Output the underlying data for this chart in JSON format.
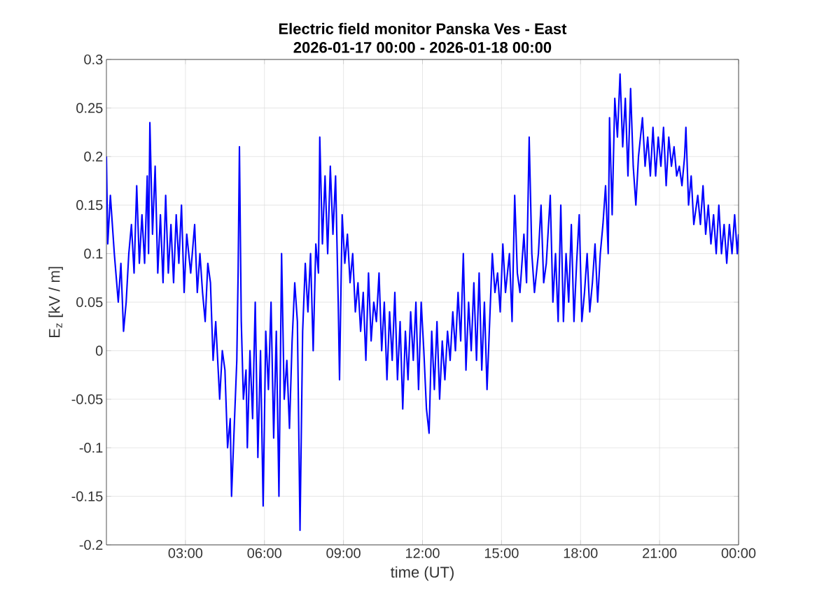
{
  "chart_data": {
    "type": "line",
    "title": "Electric field monitor Panska Ves - East",
    "subtitle": "2026-01-17 00:00 - 2026-01-18 00:00",
    "xlabel": "time (UT)",
    "ylabel": "E$_{z}$ [kV / m]",
    "xlim": [
      0,
      24
    ],
    "xticks": [
      {
        "value": 3,
        "label": "03:00"
      },
      {
        "value": 6,
        "label": "06:00"
      },
      {
        "value": 9,
        "label": "09:00"
      },
      {
        "value": 12,
        "label": "12:00"
      },
      {
        "value": 15,
        "label": "15:00"
      },
      {
        "value": 18,
        "label": "18:00"
      },
      {
        "value": 21,
        "label": "21:00"
      },
      {
        "value": 24,
        "label": "00:00"
      }
    ],
    "ylim": [
      -0.2,
      0.3
    ],
    "yticks": [
      -0.2,
      -0.15,
      -0.1,
      -0.05,
      0,
      0.05,
      0.1,
      0.15,
      0.2,
      0.25,
      0.3
    ],
    "grid": true,
    "series": [
      {
        "color": "#0000ff",
        "x": [
          0.0,
          0.05,
          0.15,
          0.3,
          0.45,
          0.55,
          0.65,
          0.75,
          0.85,
          0.95,
          1.05,
          1.15,
          1.25,
          1.35,
          1.45,
          1.55,
          1.6,
          1.65,
          1.75,
          1.85,
          1.95,
          2.05,
          2.15,
          2.25,
          2.35,
          2.45,
          2.55,
          2.65,
          2.75,
          2.85,
          2.95,
          3.05,
          3.2,
          3.35,
          3.45,
          3.55,
          3.65,
          3.75,
          3.85,
          3.95,
          4.05,
          4.15,
          4.3,
          4.4,
          4.5,
          4.6,
          4.7,
          4.75,
          4.85,
          4.95,
          5.0,
          5.05,
          5.12,
          5.2,
          5.3,
          5.35,
          5.45,
          5.55,
          5.65,
          5.75,
          5.85,
          5.95,
          6.05,
          6.15,
          6.25,
          6.35,
          6.45,
          6.55,
          6.65,
          6.75,
          6.85,
          6.95,
          7.05,
          7.15,
          7.25,
          7.35,
          7.45,
          7.55,
          7.65,
          7.75,
          7.85,
          7.95,
          8.05,
          8.1,
          8.2,
          8.3,
          8.4,
          8.5,
          8.6,
          8.7,
          8.8,
          8.85,
          8.95,
          9.05,
          9.15,
          9.25,
          9.35,
          9.45,
          9.55,
          9.65,
          9.75,
          9.85,
          9.95,
          10.05,
          10.15,
          10.25,
          10.35,
          10.45,
          10.55,
          10.65,
          10.75,
          10.85,
          10.95,
          11.05,
          11.15,
          11.25,
          11.35,
          11.45,
          11.55,
          11.65,
          11.75,
          11.85,
          11.95,
          12.05,
          12.15,
          12.25,
          12.35,
          12.45,
          12.55,
          12.65,
          12.75,
          12.85,
          12.95,
          13.05,
          13.15,
          13.25,
          13.35,
          13.45,
          13.55,
          13.65,
          13.75,
          13.85,
          13.95,
          14.05,
          14.15,
          14.25,
          14.35,
          14.45,
          14.55,
          14.65,
          14.75,
          14.85,
          14.95,
          15.05,
          15.15,
          15.3,
          15.4,
          15.5,
          15.6,
          15.7,
          15.85,
          15.95,
          16.05,
          16.15,
          16.25,
          16.4,
          16.5,
          16.6,
          16.7,
          16.85,
          16.95,
          17.05,
          17.15,
          17.25,
          17.35,
          17.45,
          17.55,
          17.65,
          17.75,
          17.85,
          17.95,
          18.05,
          18.15,
          18.25,
          18.35,
          18.45,
          18.55,
          18.65,
          18.75,
          18.85,
          18.95,
          19.05,
          19.1,
          19.2,
          19.3,
          19.4,
          19.5,
          19.6,
          19.7,
          19.8,
          19.9,
          20.0,
          20.1,
          20.2,
          20.35,
          20.45,
          20.55,
          20.65,
          20.75,
          20.85,
          20.95,
          21.05,
          21.15,
          21.25,
          21.35,
          21.45,
          21.55,
          21.65,
          21.75,
          21.85,
          21.95,
          22.0,
          22.1,
          22.2,
          22.3,
          22.45,
          22.55,
          22.65,
          22.75,
          22.85,
          22.95,
          23.05,
          23.15,
          23.25,
          23.35,
          23.45,
          23.55,
          23.65,
          23.75,
          23.85,
          23.95,
          24.0
        ],
        "values": [
          0.2,
          0.11,
          0.16,
          0.1,
          0.05,
          0.09,
          0.02,
          0.05,
          0.1,
          0.13,
          0.08,
          0.17,
          0.09,
          0.14,
          0.09,
          0.18,
          0.1,
          0.235,
          0.12,
          0.19,
          0.08,
          0.14,
          0.07,
          0.16,
          0.08,
          0.13,
          0.07,
          0.14,
          0.09,
          0.15,
          0.06,
          0.12,
          0.08,
          0.13,
          0.06,
          0.1,
          0.06,
          0.03,
          0.09,
          0.07,
          -0.01,
          0.03,
          -0.05,
          0.0,
          -0.02,
          -0.1,
          -0.07,
          -0.15,
          -0.08,
          -0.01,
          0.08,
          0.21,
          0.03,
          -0.05,
          -0.02,
          -0.1,
          0.0,
          -0.07,
          0.05,
          -0.11,
          0.0,
          -0.16,
          0.02,
          -0.04,
          0.05,
          -0.09,
          0.02,
          -0.15,
          0.1,
          -0.05,
          -0.01,
          -0.08,
          0.01,
          0.07,
          0.03,
          -0.185,
          0.02,
          0.09,
          0.04,
          0.1,
          0.0,
          0.11,
          0.08,
          0.22,
          0.11,
          0.18,
          0.1,
          0.19,
          0.12,
          0.18,
          0.05,
          -0.03,
          0.14,
          0.09,
          0.12,
          0.07,
          0.1,
          0.04,
          0.07,
          0.02,
          0.06,
          -0.01,
          0.08,
          0.01,
          0.05,
          0.03,
          0.08,
          0.0,
          0.05,
          -0.03,
          0.04,
          -0.01,
          0.06,
          -0.03,
          0.03,
          -0.06,
          0.02,
          -0.03,
          0.04,
          -0.01,
          0.05,
          -0.04,
          0.05,
          0.0,
          -0.06,
          -0.085,
          0.02,
          -0.04,
          0.03,
          -0.05,
          0.01,
          -0.03,
          0.02,
          -0.01,
          0.04,
          0.0,
          0.06,
          0.01,
          0.1,
          -0.02,
          0.05,
          0.0,
          0.07,
          -0.01,
          0.08,
          -0.02,
          0.05,
          -0.04,
          0.03,
          0.1,
          0.06,
          0.08,
          0.04,
          0.11,
          0.06,
          0.1,
          0.03,
          0.16,
          0.08,
          0.06,
          0.12,
          0.07,
          0.22,
          0.1,
          0.06,
          0.1,
          0.15,
          0.07,
          0.09,
          0.16,
          0.05,
          0.1,
          0.03,
          0.15,
          0.03,
          0.1,
          0.05,
          0.13,
          0.03,
          0.09,
          0.14,
          0.03,
          0.06,
          0.1,
          0.04,
          0.07,
          0.11,
          0.05,
          0.1,
          0.13,
          0.17,
          0.1,
          0.24,
          0.14,
          0.26,
          0.22,
          0.285,
          0.21,
          0.26,
          0.18,
          0.27,
          0.19,
          0.15,
          0.2,
          0.24,
          0.19,
          0.22,
          0.18,
          0.23,
          0.18,
          0.22,
          0.19,
          0.23,
          0.17,
          0.22,
          0.19,
          0.21,
          0.18,
          0.19,
          0.17,
          0.2,
          0.23,
          0.15,
          0.18,
          0.13,
          0.16,
          0.13,
          0.17,
          0.12,
          0.15,
          0.11,
          0.14,
          0.1,
          0.15,
          0.1,
          0.13,
          0.09,
          0.13,
          0.1,
          0.14,
          0.1,
          0.12
        ]
      }
    ]
  }
}
